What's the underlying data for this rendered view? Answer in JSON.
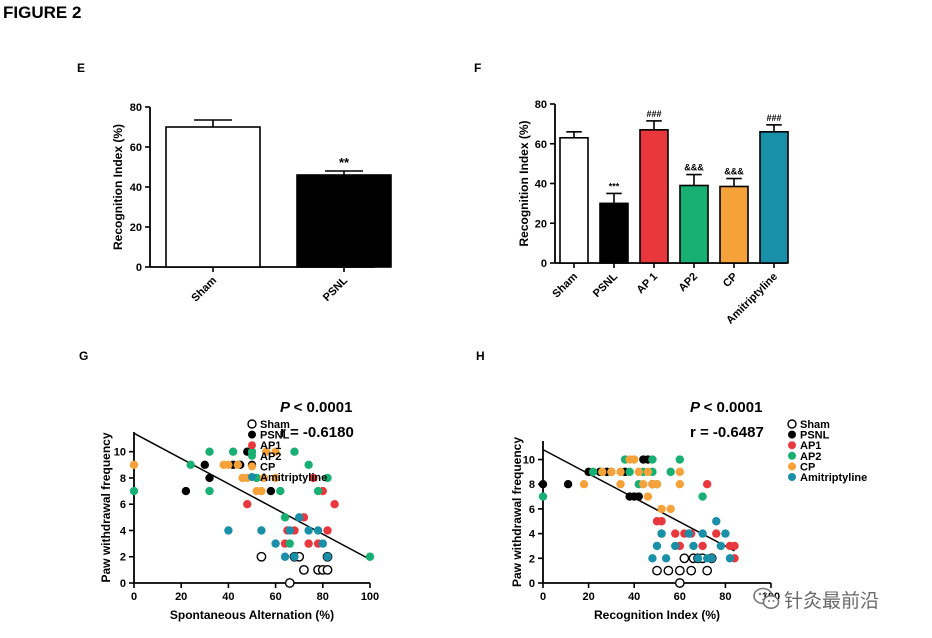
{
  "figure": {
    "title": "FIGURE 2"
  },
  "colors": {
    "sham": "#ffffff",
    "psnl": "#000000",
    "ap1": "#e8383d",
    "ap2": "#17b072",
    "cp": "#f5a23a",
    "amitriptyline": "#1a8fa8"
  },
  "chart_data": [
    {
      "panel": "E",
      "type": "bar",
      "categories": [
        "Sham",
        "PSNL"
      ],
      "values": [
        70,
        46
      ],
      "errors": [
        3.5,
        2
      ],
      "annotations": [
        "",
        "**"
      ],
      "colors": [
        "#ffffff",
        "#000000"
      ],
      "xlabel": "",
      "ylabel": "Recognition Index (%)",
      "ylim": [
        0,
        80
      ],
      "yticks": [
        0,
        20,
        40,
        60,
        80
      ]
    },
    {
      "panel": "F",
      "type": "bar",
      "categories": [
        "Sham",
        "PSNL",
        "AP 1",
        "AP2",
        "CP",
        "Amitriptyline"
      ],
      "values": [
        63,
        30,
        67,
        39,
        38.5,
        66
      ],
      "errors": [
        3,
        5,
        4.5,
        5.5,
        4,
        3.5
      ],
      "annotations": [
        "",
        "***",
        "###",
        "&&&",
        "&&&",
        "###"
      ],
      "colors": [
        "#ffffff",
        "#000000",
        "#e8383d",
        "#17b072",
        "#f5a23a",
        "#1a8fa8"
      ],
      "xlabel": "",
      "ylabel": "Recognition Index (%)",
      "ylim": [
        0,
        80
      ],
      "yticks": [
        0,
        20,
        40,
        60,
        80
      ]
    },
    {
      "panel": "G",
      "type": "scatter",
      "xlabel": "Spontaneous Alternation (%)",
      "ylabel": "Paw withdrawal frequency",
      "xlim": [
        0,
        100
      ],
      "ylim": [
        0,
        11.5
      ],
      "xticks": [
        0,
        20,
        40,
        60,
        80,
        100
      ],
      "yticks": [
        0,
        2,
        4,
        6,
        8,
        10
      ],
      "stat_p_label": "P",
      "stat_p_value": "< 0.0001",
      "stat_r": "r = -0.6180",
      "regression": {
        "x": [
          0,
          100
        ],
        "y": [
          11.4,
          1.8
        ]
      },
      "legend_position": "top-right",
      "series": [
        {
          "name": "Sham",
          "color": "#ffffff",
          "points": [
            [
              54,
              2
            ],
            [
              68,
              2
            ],
            [
              70,
              2
            ],
            [
              82,
              2
            ],
            [
              72,
              1
            ],
            [
              78,
              1
            ],
            [
              80,
              1
            ],
            [
              82,
              1
            ],
            [
              66,
              0
            ]
          ]
        },
        {
          "name": "PSNL",
          "color": "#000000",
          "points": [
            [
              22,
              7
            ],
            [
              30,
              9
            ],
            [
              32,
              8
            ],
            [
              42,
              9
            ],
            [
              45,
              9
            ],
            [
              48,
              10
            ],
            [
              50,
              9
            ],
            [
              58,
              7
            ]
          ]
        },
        {
          "name": "AP1",
          "color": "#e8383d",
          "points": [
            [
              48,
              6
            ],
            [
              64,
              3
            ],
            [
              65,
              4
            ],
            [
              68,
              4
            ],
            [
              72,
              5
            ],
            [
              74,
              3
            ],
            [
              76,
              8
            ],
            [
              78,
              3
            ],
            [
              80,
              7
            ],
            [
              82,
              4
            ],
            [
              85,
              6
            ]
          ]
        },
        {
          "name": "AP2",
          "color": "#17b072",
          "points": [
            [
              0,
              7
            ],
            [
              24,
              9
            ],
            [
              32,
              7
            ],
            [
              32,
              10
            ],
            [
              42,
              10
            ],
            [
              50,
              10
            ],
            [
              52,
              8
            ],
            [
              62,
              7
            ],
            [
              64,
              5
            ],
            [
              66,
              3
            ],
            [
              68,
              10
            ],
            [
              74,
              9
            ],
            [
              78,
              7
            ],
            [
              82,
              8
            ],
            [
              100,
              2
            ]
          ]
        },
        {
          "name": "CP",
          "color": "#f5a23a",
          "points": [
            [
              0,
              9
            ],
            [
              38,
              9
            ],
            [
              40,
              9
            ],
            [
              44,
              9
            ],
            [
              46,
              8
            ],
            [
              48,
              8
            ],
            [
              52,
              7
            ],
            [
              54,
              7
            ],
            [
              55,
              8
            ],
            [
              56,
              10
            ],
            [
              60,
              10
            ],
            [
              60,
              8
            ]
          ]
        },
        {
          "name": "Amitriptyline",
          "color": "#1a8fa8",
          "points": [
            [
              40,
              4
            ],
            [
              54,
              4
            ],
            [
              60,
              3
            ],
            [
              64,
              2
            ],
            [
              66,
              4
            ],
            [
              68,
              2
            ],
            [
              70,
              5
            ],
            [
              74,
              4
            ],
            [
              78,
              4
            ],
            [
              80,
              3
            ],
            [
              82,
              2
            ]
          ]
        }
      ]
    },
    {
      "panel": "H",
      "type": "scatter",
      "xlabel": "Recognition Index (%)",
      "ylabel": "Paw withdrawal frequency",
      "xlim": [
        0,
        100
      ],
      "ylim": [
        0,
        11.5
      ],
      "xticks": [
        0,
        20,
        40,
        60,
        80,
        100
      ],
      "yticks": [
        0,
        2,
        4,
        6,
        8,
        10
      ],
      "stat_p_label": "P",
      "stat_p_value": "< 0.0001",
      "stat_r": "r = -0.6487",
      "regression": {
        "x": [
          0,
          84
        ],
        "y": [
          10.8,
          2.6
        ]
      },
      "legend_position": "top-right",
      "series": [
        {
          "name": "Sham",
          "color": "#ffffff",
          "points": [
            [
              50,
              1
            ],
            [
              55,
              1
            ],
            [
              60,
              1
            ],
            [
              62,
              2
            ],
            [
              65,
              1
            ],
            [
              66,
              2
            ],
            [
              68,
              2
            ],
            [
              70,
              2
            ],
            [
              72,
              1
            ],
            [
              74,
              2
            ],
            [
              60,
              0
            ]
          ]
        },
        {
          "name": "PSNL",
          "color": "#000000",
          "points": [
            [
              0,
              8
            ],
            [
              11,
              8
            ],
            [
              20,
              9
            ],
            [
              25,
              9
            ],
            [
              28,
              9
            ],
            [
              36,
              9
            ],
            [
              38,
              7
            ],
            [
              40,
              7
            ],
            [
              42,
              7
            ],
            [
              44,
              10
            ],
            [
              46,
              10
            ],
            [
              48,
              8
            ]
          ]
        },
        {
          "name": "AP1",
          "color": "#e8383d",
          "points": [
            [
              50,
              5
            ],
            [
              52,
              5
            ],
            [
              58,
              4
            ],
            [
              60,
              3
            ],
            [
              62,
              4
            ],
            [
              65,
              4
            ],
            [
              70,
              3
            ],
            [
              72,
              8
            ],
            [
              74,
              2
            ],
            [
              76,
              4
            ],
            [
              82,
              3
            ],
            [
              84,
              2
            ],
            [
              84,
              3
            ]
          ]
        },
        {
          "name": "AP2",
          "color": "#17b072",
          "points": [
            [
              0,
              7
            ],
            [
              22,
              9
            ],
            [
              30,
              9
            ],
            [
              36,
              10
            ],
            [
              38,
              9
            ],
            [
              42,
              8
            ],
            [
              44,
              9
            ],
            [
              48,
              9
            ],
            [
              48,
              10
            ],
            [
              50,
              8
            ],
            [
              52,
              4
            ],
            [
              56,
              9
            ],
            [
              60,
              10
            ],
            [
              70,
              7
            ]
          ]
        },
        {
          "name": "CP",
          "color": "#f5a23a",
          "points": [
            [
              18,
              8
            ],
            [
              26,
              9
            ],
            [
              30,
              9
            ],
            [
              34,
              9
            ],
            [
              34,
              8
            ],
            [
              38,
              10
            ],
            [
              40,
              10
            ],
            [
              42,
              9
            ],
            [
              44,
              8
            ],
            [
              46,
              7
            ],
            [
              46,
              9
            ],
            [
              48,
              8
            ],
            [
              50,
              8
            ],
            [
              52,
              6
            ],
            [
              56,
              6
            ],
            [
              60,
              8
            ],
            [
              60,
              9
            ]
          ]
        },
        {
          "name": "Amitriptyline",
          "color": "#1a8fa8",
          "points": [
            [
              48,
              2
            ],
            [
              50,
              3
            ],
            [
              52,
              4
            ],
            [
              54,
              2
            ],
            [
              58,
              3
            ],
            [
              64,
              4
            ],
            [
              66,
              3
            ],
            [
              68,
              2
            ],
            [
              70,
              4
            ],
            [
              72,
              2
            ],
            [
              74,
              2
            ],
            [
              76,
              5
            ],
            [
              78,
              3
            ],
            [
              80,
              4
            ],
            [
              82,
              2
            ]
          ]
        }
      ]
    }
  ],
  "watermark": {
    "text": "针灸最前沿",
    "icon": "wechat-logo-icon"
  }
}
